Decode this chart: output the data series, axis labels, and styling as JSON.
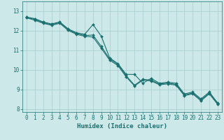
{
  "series": [
    {
      "x": [
        0,
        1,
        2,
        3,
        4,
        5,
        6,
        7,
        8,
        9,
        10,
        11,
        12,
        13,
        14,
        15,
        16,
        17,
        18,
        19,
        20,
        21,
        22,
        23
      ],
      "y": [
        12.7,
        12.62,
        12.45,
        12.35,
        12.45,
        12.1,
        11.9,
        11.82,
        12.32,
        11.72,
        10.62,
        10.32,
        9.77,
        9.77,
        9.32,
        9.57,
        9.32,
        9.37,
        9.32,
        8.77,
        8.87,
        8.52,
        8.87,
        8.32
      ]
    },
    {
      "x": [
        0,
        1,
        2,
        3,
        4,
        5,
        6,
        7,
        8,
        9,
        10,
        11,
        12,
        13,
        14,
        15,
        16,
        17,
        18,
        19,
        20,
        21,
        22,
        23
      ],
      "y": [
        12.68,
        12.58,
        12.42,
        12.32,
        12.42,
        12.06,
        11.86,
        11.76,
        11.78,
        11.2,
        10.56,
        10.28,
        9.7,
        9.22,
        9.52,
        9.48,
        9.28,
        9.33,
        9.26,
        8.72,
        8.82,
        8.46,
        8.82,
        8.28
      ]
    },
    {
      "x": [
        0,
        1,
        2,
        3,
        4,
        5,
        6,
        7,
        8,
        9,
        10,
        11,
        12,
        13,
        14,
        15,
        16,
        17,
        18,
        19,
        20,
        21,
        22,
        23
      ],
      "y": [
        12.66,
        12.54,
        12.38,
        12.28,
        12.38,
        12.02,
        11.82,
        11.72,
        11.68,
        11.1,
        10.5,
        10.22,
        9.64,
        9.18,
        9.48,
        9.44,
        9.24,
        9.29,
        9.22,
        8.68,
        8.78,
        8.42,
        8.78,
        8.24
      ]
    }
  ],
  "line_color": "#1a7070",
  "marker": "D",
  "marker_size": 2.0,
  "line_width": 0.8,
  "xlabel": "Humidex (Indice chaleur)",
  "xlim": [
    -0.5,
    23.5
  ],
  "ylim": [
    7.85,
    13.5
  ],
  "yticks": [
    8,
    9,
    10,
    11,
    12,
    13
  ],
  "xticks": [
    0,
    1,
    2,
    3,
    4,
    5,
    6,
    7,
    8,
    9,
    10,
    11,
    12,
    13,
    14,
    15,
    16,
    17,
    18,
    19,
    20,
    21,
    22,
    23
  ],
  "background_color": "#cce8e8",
  "grid_color": "#a8cccc",
  "tick_fontsize": 5.5,
  "xlabel_fontsize": 6.5
}
